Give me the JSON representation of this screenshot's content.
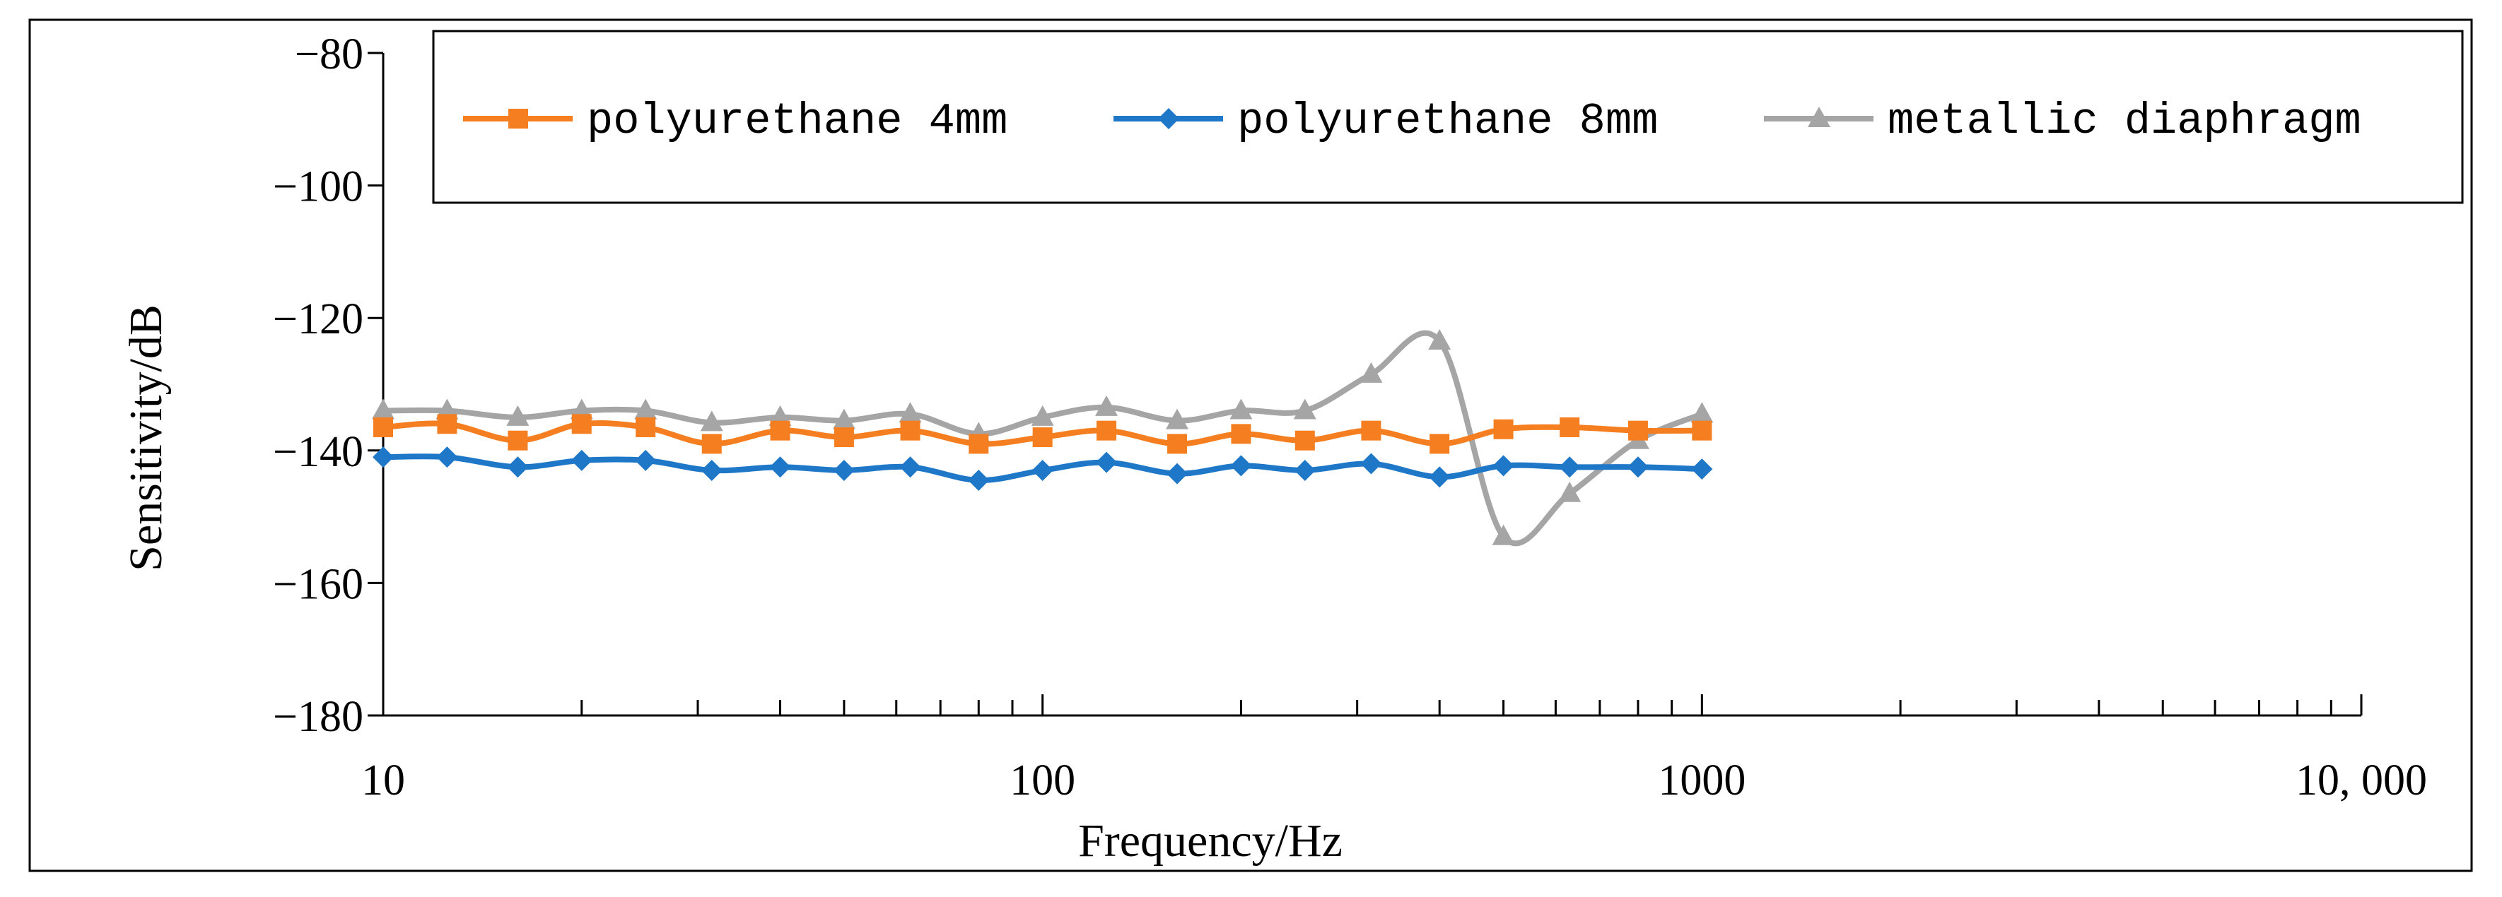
{
  "chart_data": {
    "type": "line",
    "title": "",
    "xlabel": "Frequency/Hz",
    "ylabel": "Sensitivity/dB",
    "x_scale": "log",
    "xlim": [
      10,
      10000
    ],
    "ylim": [
      -180,
      -80
    ],
    "x_ticks": [
      {
        "value": 10,
        "label": "10"
      },
      {
        "value": 100,
        "label": "100"
      },
      {
        "value": 1000,
        "label": "1000"
      },
      {
        "value": 10000,
        "label": "10, 000"
      }
    ],
    "y_ticks": [
      {
        "value": -80,
        "label": "−80"
      },
      {
        "value": -100,
        "label": "−100"
      },
      {
        "value": -120,
        "label": "−120"
      },
      {
        "value": -140,
        "label": "−140"
      },
      {
        "value": -160,
        "label": "−160"
      },
      {
        "value": -180,
        "label": "−180"
      }
    ],
    "grid": false,
    "legend_position": "top",
    "x": [
      10,
      12.5,
      16,
      20,
      25,
      31.5,
      40,
      50,
      63,
      80,
      100,
      125,
      160,
      200,
      250,
      315,
      400,
      500,
      630,
      800,
      1000
    ],
    "series": [
      {
        "name": "polyurethane 4mm",
        "color": "#F57F20",
        "marker": "square",
        "values": [
          -136.5,
          -136.0,
          -138.5,
          -136.0,
          -136.5,
          -139.0,
          -137.0,
          -138.0,
          -137.0,
          -139.0,
          -138.0,
          -137.0,
          -139.0,
          -137.5,
          -138.5,
          -137.0,
          -139.0,
          -136.8,
          -136.5,
          -137.0,
          -137.0
        ]
      },
      {
        "name": "polyurethane 8mm",
        "color": "#1F77C8",
        "marker": "diamond",
        "values": [
          -141.0,
          -141.0,
          -142.5,
          -141.5,
          -141.5,
          -143.0,
          -142.5,
          -143.0,
          -142.5,
          -144.5,
          -143.0,
          -141.8,
          -143.5,
          -142.3,
          -143.0,
          -142.0,
          -144.0,
          -142.3,
          -142.5,
          -142.5,
          -142.8
        ]
      },
      {
        "name": "metallic diaphragm",
        "color": "#A5A5A5",
        "marker": "triangle",
        "values": [
          -134.0,
          -134.0,
          -135.0,
          -134.0,
          -134.0,
          -135.8,
          -135.0,
          -135.5,
          -134.5,
          -137.5,
          -135.0,
          -133.5,
          -135.5,
          -134.0,
          -134.0,
          -128.5,
          -123.5,
          -153.0,
          -146.5,
          -138.5,
          -134.5
        ]
      }
    ]
  }
}
